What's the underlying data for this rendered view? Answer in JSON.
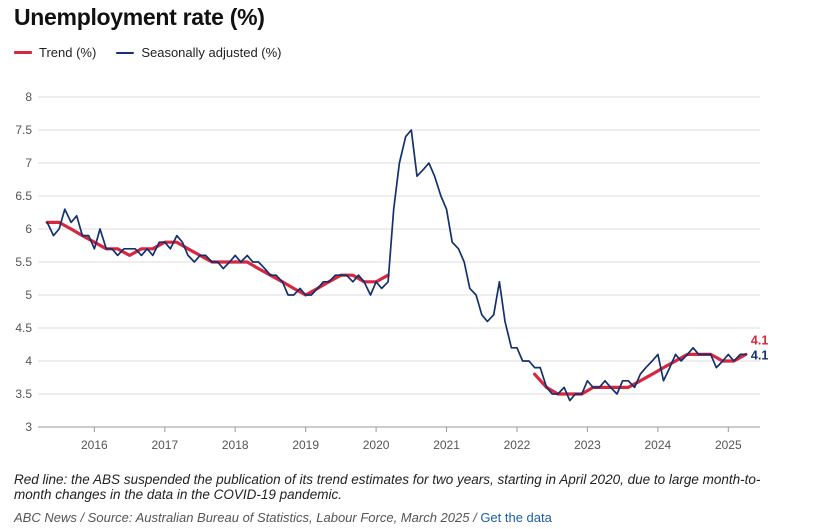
{
  "title": "Unemployment rate (%)",
  "note": "Red line: the ABS suspended the publication of its trend estimates for two years, starting in April 2020, due to large month-to-month changes in the data in the COVID-19 pandemic.",
  "source": {
    "text": "ABC News / Source: Australian Bureau of Statistics, Labour Force, March 2025 /",
    "link": "Get the data"
  },
  "colors": {
    "trend": "#d7263d",
    "seasonal": "#14306e",
    "grid": "#dcdcdc",
    "tick": "#555555"
  },
  "chart_data": {
    "type": "line",
    "title": "Unemployment rate (%)",
    "xlabel": "",
    "ylabel": "",
    "xlim": [
      2015.2,
      2025.45
    ],
    "ylim": [
      3,
      8
    ],
    "yticks": [
      3,
      3.5,
      4,
      4.5,
      5,
      5.5,
      6,
      6.5,
      7,
      7.5,
      8
    ],
    "ytick_labels": [
      "3",
      "3.5",
      "4",
      "4.5",
      "5",
      "5.5",
      "6",
      "6.5",
      "7",
      "7.5",
      "8"
    ],
    "xticks": [
      2016,
      2017,
      2018,
      2019,
      2020,
      2021,
      2022,
      2023,
      2024,
      2025
    ],
    "xtick_labels": [
      "2016",
      "2017",
      "2018",
      "2019",
      "2020",
      "2021",
      "2022",
      "2023",
      "2024",
      "2025"
    ],
    "grid": "horizontal",
    "legend_position": "top-left",
    "end_labels": {
      "trend": "4.1",
      "seasonal": "4.1"
    },
    "series": [
      {
        "name": "Trend (%)",
        "key": "trend",
        "segments": [
          {
            "x": [
              2015.33,
              2015.5,
              2015.67,
              2015.83,
              2016.0,
              2016.17,
              2016.33,
              2016.5,
              2016.67,
              2016.83,
              2017.0,
              2017.17,
              2017.33,
              2017.5,
              2017.67,
              2017.83,
              2018.0,
              2018.17,
              2018.33,
              2018.5,
              2018.67,
              2018.83,
              2019.0,
              2019.17,
              2019.33,
              2019.5,
              2019.67,
              2019.83,
              2020.0,
              2020.17
            ],
            "y": [
              6.1,
              6.1,
              6.0,
              5.9,
              5.8,
              5.7,
              5.7,
              5.6,
              5.7,
              5.7,
              5.8,
              5.8,
              5.7,
              5.6,
              5.5,
              5.5,
              5.5,
              5.5,
              5.4,
              5.3,
              5.2,
              5.1,
              5.0,
              5.1,
              5.2,
              5.3,
              5.3,
              5.2,
              5.2,
              5.3
            ]
          },
          {
            "x": [
              2022.25,
              2022.42,
              2022.58,
              2022.75,
              2022.92,
              2023.08,
              2023.25,
              2023.42,
              2023.58,
              2023.75,
              2023.92,
              2024.08,
              2024.25,
              2024.42,
              2024.58,
              2024.75,
              2024.92,
              2025.08,
              2025.25
            ],
            "y": [
              3.8,
              3.6,
              3.5,
              3.5,
              3.5,
              3.6,
              3.6,
              3.6,
              3.6,
              3.7,
              3.8,
              3.9,
              4.0,
              4.1,
              4.1,
              4.1,
              4.0,
              4.0,
              4.1
            ]
          }
        ]
      },
      {
        "name": "Seasonally adjusted (%)",
        "key": "seasonal",
        "segments": [
          {
            "x": [
              2015.33,
              2015.42,
              2015.5,
              2015.58,
              2015.67,
              2015.75,
              2015.83,
              2015.92,
              2016.0,
              2016.08,
              2016.17,
              2016.25,
              2016.33,
              2016.42,
              2016.5,
              2016.58,
              2016.67,
              2016.75,
              2016.83,
              2016.92,
              2017.0,
              2017.08,
              2017.17,
              2017.25,
              2017.33,
              2017.42,
              2017.5,
              2017.58,
              2017.67,
              2017.75,
              2017.83,
              2017.92,
              2018.0,
              2018.08,
              2018.17,
              2018.25,
              2018.33,
              2018.42,
              2018.5,
              2018.58,
              2018.67,
              2018.75,
              2018.83,
              2018.92,
              2019.0,
              2019.08,
              2019.17,
              2019.25,
              2019.33,
              2019.42,
              2019.5,
              2019.58,
              2019.67,
              2019.75,
              2019.83,
              2019.92,
              2020.0,
              2020.08,
              2020.17,
              2020.25,
              2020.33,
              2020.42,
              2020.5,
              2020.58,
              2020.67,
              2020.75,
              2020.83,
              2020.92,
              2021.0,
              2021.08,
              2021.17,
              2021.25,
              2021.33,
              2021.42,
              2021.5,
              2021.58,
              2021.67,
              2021.75,
              2021.83,
              2021.92,
              2022.0,
              2022.08,
              2022.17,
              2022.25,
              2022.33,
              2022.42,
              2022.5,
              2022.58,
              2022.67,
              2022.75,
              2022.83,
              2022.92,
              2023.0,
              2023.08,
              2023.17,
              2023.25,
              2023.33,
              2023.42,
              2023.5,
              2023.58,
              2023.67,
              2023.75,
              2023.83,
              2023.92,
              2024.0,
              2024.08,
              2024.17,
              2024.25,
              2024.33,
              2024.42,
              2024.5,
              2024.58,
              2024.67,
              2024.75,
              2024.83,
              2024.92,
              2025.0,
              2025.08,
              2025.17,
              2025.25
            ],
            "y": [
              6.1,
              5.9,
              6.0,
              6.3,
              6.1,
              6.2,
              5.9,
              5.9,
              5.7,
              6.0,
              5.7,
              5.7,
              5.6,
              5.7,
              5.7,
              5.7,
              5.6,
              5.7,
              5.6,
              5.8,
              5.8,
              5.7,
              5.9,
              5.8,
              5.6,
              5.5,
              5.6,
              5.6,
              5.5,
              5.5,
              5.4,
              5.5,
              5.6,
              5.5,
              5.6,
              5.5,
              5.5,
              5.4,
              5.3,
              5.3,
              5.2,
              5.0,
              5.0,
              5.1,
              5.0,
              5.0,
              5.1,
              5.2,
              5.2,
              5.3,
              5.3,
              5.3,
              5.2,
              5.3,
              5.2,
              5.0,
              5.2,
              5.1,
              5.2,
              6.3,
              7.0,
              7.4,
              7.5,
              6.8,
              6.9,
              7.0,
              6.8,
              6.5,
              6.3,
              5.8,
              5.7,
              5.5,
              5.1,
              5.0,
              4.7,
              4.6,
              4.7,
              5.2,
              4.6,
              4.2,
              4.2,
              4.0,
              4.0,
              3.9,
              3.9,
              3.6,
              3.5,
              3.5,
              3.6,
              3.4,
              3.5,
              3.5,
              3.7,
              3.6,
              3.6,
              3.7,
              3.6,
              3.5,
              3.7,
              3.7,
              3.6,
              3.8,
              3.9,
              4.0,
              4.1,
              3.7,
              3.9,
              4.1,
              4.0,
              4.1,
              4.2,
              4.1,
              4.1,
              4.1,
              3.9,
              4.0,
              4.1,
              4.0,
              4.1,
              4.1
            ]
          }
        ]
      }
    ]
  }
}
